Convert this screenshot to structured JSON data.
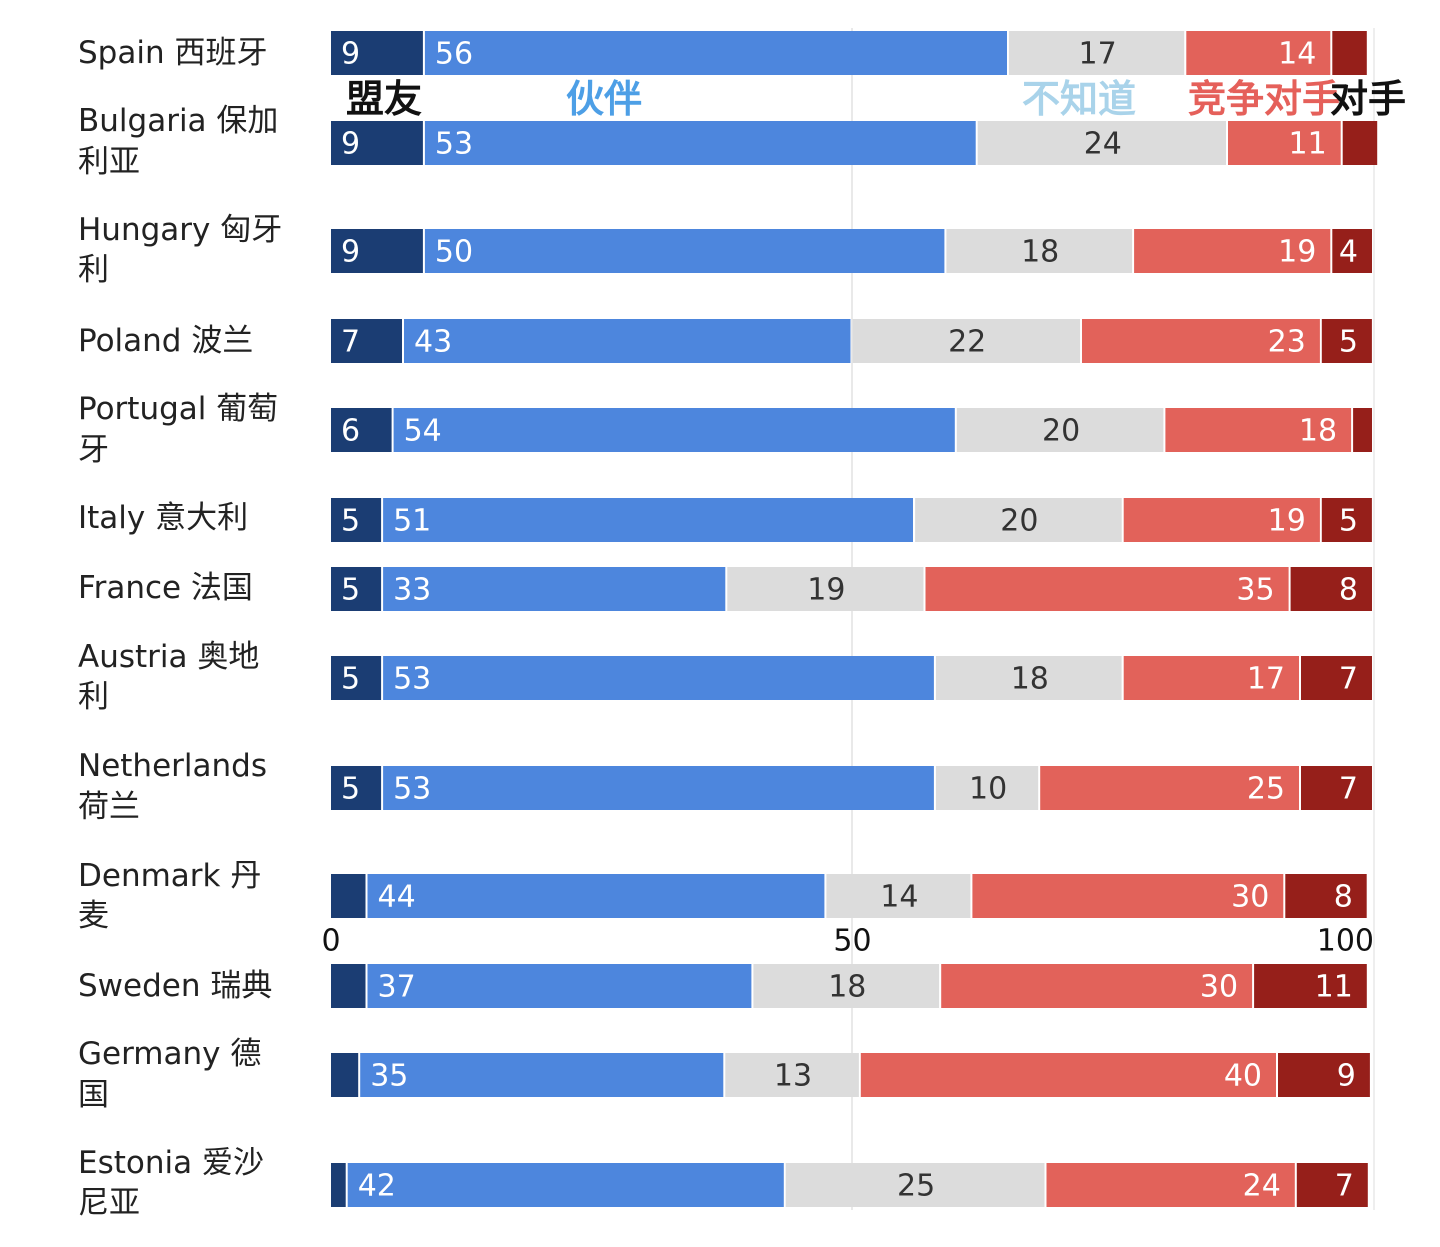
{
  "chart_data": {
    "type": "bar",
    "orientation": "horizontal",
    "stacked": true,
    "xlim": [
      0,
      100
    ],
    "x_ticks": [
      "0",
      "50",
      "100"
    ],
    "grid": "vertical line at 50",
    "legend_placement": "top, between first and second bar",
    "categories": [
      {
        "en": "Spain",
        "zh": "西班牙"
      },
      {
        "en": "Bulgaria",
        "zh": "保加利亚"
      },
      {
        "en": "Hungary",
        "zh": "匈牙利"
      },
      {
        "en": "Poland",
        "zh": "波兰"
      },
      {
        "en": "Portugal",
        "zh": "葡萄牙"
      },
      {
        "en": "Italy",
        "zh": "意大利"
      },
      {
        "en": "France",
        "zh": "法国"
      },
      {
        "en": "Austria",
        "zh": "奥地利"
      },
      {
        "en": "Netherlands",
        "zh": "荷兰"
      },
      {
        "en": "Denmark",
        "zh": "丹麦"
      },
      {
        "en": "Sweden",
        "zh": "瑞典"
      },
      {
        "en": "Germany",
        "zh": "德国"
      },
      {
        "en": "Estonia",
        "zh": "爱沙尼亚"
      }
    ],
    "series": [
      {
        "name": "盟友",
        "color": "#1b3d73",
        "label_color": "#ffffff",
        "values": [
          9,
          9,
          9,
          7,
          6,
          5,
          5,
          5,
          5,
          3.5,
          3.5,
          2.8,
          1.6
        ],
        "shown_labels": [
          "9",
          "9",
          "9",
          "7",
          "6",
          "5",
          "5",
          "5",
          "5",
          "",
          "",
          "",
          ""
        ]
      },
      {
        "name": "伙伴",
        "color": "#4d86dd",
        "label_color": "#ffffff",
        "values": [
          56,
          53,
          50,
          43,
          54,
          51,
          33,
          53,
          53,
          44,
          37,
          35,
          42
        ],
        "shown_labels": [
          "56",
          "53",
          "50",
          "43",
          "54",
          "51",
          "33",
          "53",
          "53",
          "44",
          "37",
          "35",
          "42"
        ]
      },
      {
        "name": "不知道",
        "color": "#dcdcdc",
        "label_color": "#333333",
        "values": [
          17,
          24,
          18,
          22,
          20,
          20,
          19,
          18,
          10,
          14,
          18,
          13,
          25
        ],
        "shown_labels": [
          "17",
          "24",
          "18",
          "22",
          "20",
          "20",
          "19",
          "18",
          "10",
          "14",
          "18",
          "13",
          "25"
        ]
      },
      {
        "name": "竞争对手",
        "color": "#e2625a",
        "label_color": "#ffffff",
        "values": [
          14,
          11,
          19,
          23,
          18,
          19,
          35,
          17,
          25,
          30,
          30,
          40,
          24
        ],
        "shown_labels": [
          "14",
          "11",
          "19",
          "23",
          "18",
          "19",
          "35",
          "17",
          "25",
          "30",
          "30",
          "40",
          "24"
        ]
      },
      {
        "name": "对手",
        "color": "#961f1a",
        "label_color": "#ffffff",
        "values": [
          3.5,
          3.5,
          4,
          5,
          2,
          5,
          8,
          7,
          7,
          8,
          11,
          9,
          7
        ],
        "shown_labels": [
          "",
          "",
          "4",
          "5",
          "",
          "5",
          "8",
          "7",
          "7",
          "8",
          "11",
          "9",
          "7"
        ]
      }
    ],
    "legend": [
      {
        "text": "盟友",
        "color": "#111111"
      },
      {
        "text": "伙伴",
        "color": "#4d9fe6"
      },
      {
        "text": "不知道",
        "color": "#a9d3ea"
      },
      {
        "text": "竞争对手",
        "color": "#e5605a"
      },
      {
        "text": "对手",
        "color": "#111111"
      }
    ]
  }
}
